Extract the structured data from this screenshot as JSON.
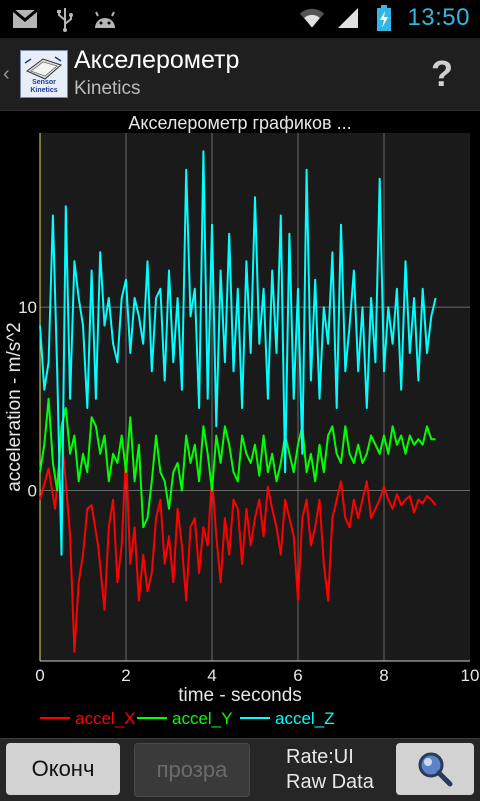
{
  "status_bar": {
    "time": "13:50",
    "left_icons": [
      "gmail-icon",
      "usb-icon",
      "android-icon"
    ],
    "right_icons": [
      "wifi-icon",
      "signal-icon",
      "battery-charging-icon"
    ]
  },
  "action_bar": {
    "title": "Акселерометр",
    "subtitle": "Kinetics",
    "logo_text": "Sensor Kinetics",
    "help_label": "?"
  },
  "chart_data": {
    "type": "line",
    "title": "Акселерометр графиков  ...",
    "xlabel": "time - seconds",
    "ylabel": "acceleration - m/s^2",
    "xlim": [
      0,
      10
    ],
    "ylim": [
      -9.3,
      19.5
    ],
    "x_ticks": [
      "0",
      "2",
      "4",
      "6",
      "8",
      "10"
    ],
    "y_ticks": [
      "0",
      "10"
    ],
    "grid": true,
    "legend_position": "bottom",
    "series": [
      {
        "name": "accel_X",
        "color": "#ff0000",
        "x": [
          0,
          0.2,
          0.35,
          0.5,
          0.6,
          0.7,
          0.8,
          0.9,
          1.0,
          1.1,
          1.2,
          1.35,
          1.5,
          1.6,
          1.7,
          1.8,
          1.9,
          2.0,
          2.1,
          2.2,
          2.3,
          2.4,
          2.5,
          2.6,
          2.7,
          2.8,
          2.9,
          3.0,
          3.1,
          3.2,
          3.3,
          3.4,
          3.5,
          3.6,
          3.7,
          3.8,
          3.9,
          4.0,
          4.1,
          4.2,
          4.3,
          4.4,
          4.5,
          4.6,
          4.7,
          4.8,
          4.9,
          5.0,
          5.1,
          5.2,
          5.3,
          5.4,
          5.5,
          5.6,
          5.7,
          5.8,
          5.9,
          6.0,
          6.1,
          6.2,
          6.3,
          6.4,
          6.5,
          6.6,
          6.7,
          6.8,
          6.9,
          7.0,
          7.1,
          7.2,
          7.3,
          7.4,
          7.5,
          7.6,
          7.7,
          7.8,
          7.9,
          8.0,
          8.1,
          8.2,
          8.3,
          8.4,
          8.5,
          8.6,
          8.7,
          8.8,
          8.9,
          9.0,
          9.1,
          9.2
        ],
        "values": [
          -0.5,
          1.2,
          -1.0,
          3.0,
          0.5,
          -2.5,
          -8.8,
          -5.0,
          -3.5,
          -1.0,
          -0.8,
          -3.0,
          -6.5,
          -2.0,
          -0.5,
          -5.0,
          -3.0,
          2.0,
          -4.0,
          -2.0,
          -6.0,
          -3.5,
          -5.5,
          -4.5,
          -1.5,
          -0.5,
          -4.0,
          -2.5,
          -5.0,
          -1.0,
          -3.0,
          -6.0,
          -2.0,
          -1.5,
          -4.5,
          -2.0,
          -3.0,
          0.8,
          -2.5,
          -5.0,
          -1.5,
          -3.5,
          -0.5,
          -1.0,
          -4.0,
          -1.0,
          -3.0,
          -1.5,
          -0.5,
          -2.5,
          0.2,
          -1.0,
          -2.0,
          -3.5,
          -0.5,
          -1.5,
          -2.5,
          -6.0,
          -1.5,
          -0.5,
          -3.0,
          -2.0,
          -0.5,
          -4.0,
          -6.0,
          -1.5,
          -0.5,
          0.5,
          -1.5,
          -2.0,
          -0.5,
          -1.5,
          -0.5,
          0.5,
          -1.5,
          -1.0,
          -0.5,
          0.2,
          -0.5,
          -1.0,
          -0.2,
          -0.8,
          -0.5,
          -0.3,
          -1.2,
          -0.5,
          -0.7,
          -0.3,
          -0.5,
          -0.8
        ]
      },
      {
        "name": "accel_Y",
        "color": "#00ff00",
        "x": [
          0,
          0.1,
          0.2,
          0.3,
          0.4,
          0.5,
          0.6,
          0.7,
          0.8,
          0.9,
          1.0,
          1.1,
          1.2,
          1.3,
          1.4,
          1.5,
          1.6,
          1.7,
          1.8,
          1.9,
          2.0,
          2.1,
          2.2,
          2.3,
          2.4,
          2.5,
          2.6,
          2.7,
          2.8,
          2.9,
          3.0,
          3.1,
          3.2,
          3.3,
          3.4,
          3.5,
          3.6,
          3.7,
          3.8,
          3.9,
          4.0,
          4.1,
          4.2,
          4.3,
          4.4,
          4.5,
          4.6,
          4.7,
          4.8,
          4.9,
          5.0,
          5.1,
          5.2,
          5.3,
          5.4,
          5.5,
          5.6,
          5.7,
          5.8,
          5.9,
          6.0,
          6.1,
          6.2,
          6.3,
          6.4,
          6.5,
          6.6,
          6.7,
          6.8,
          6.9,
          7.0,
          7.1,
          7.2,
          7.3,
          7.4,
          7.5,
          7.6,
          7.7,
          7.8,
          7.9,
          8.0,
          8.1,
          8.2,
          8.3,
          8.4,
          8.5,
          8.6,
          8.7,
          8.8,
          8.9,
          9.0,
          9.1,
          9.2
        ],
        "values": [
          1.0,
          2.5,
          5.0,
          1.5,
          0.0,
          3.5,
          4.5,
          2.0,
          3.0,
          0.5,
          2.0,
          1.0,
          4.0,
          3.5,
          2.0,
          3.0,
          0.5,
          2.0,
          1.5,
          3.0,
          1.0,
          4.0,
          0.5,
          2.5,
          -2.0,
          -1.5,
          0.5,
          3.0,
          1.0,
          0.5,
          -1.0,
          1.0,
          1.5,
          0.0,
          3.0,
          1.5,
          2.5,
          0.5,
          3.5,
          2.0,
          0.0,
          3.0,
          1.5,
          3.5,
          2.5,
          1.0,
          0.5,
          3.0,
          2.0,
          1.5,
          2.5,
          0.8,
          3.0,
          1.0,
          2.0,
          0.5,
          1.5,
          3.0,
          2.0,
          1.0,
          2.5,
          3.5,
          1.0,
          2.0,
          0.5,
          2.5,
          1.0,
          3.0,
          3.5,
          2.0,
          1.5,
          3.5,
          2.0,
          1.5,
          2.5,
          1.5,
          2.0,
          3.0,
          2.5,
          2.0,
          3.0,
          2.0,
          3.5,
          2.5,
          3.0,
          2.0,
          3.0,
          2.5,
          2.8,
          2.5,
          3.5,
          2.8,
          2.8
        ]
      },
      {
        "name": "accel_Z",
        "color": "#00ffff",
        "x": [
          0,
          0.1,
          0.2,
          0.3,
          0.4,
          0.5,
          0.6,
          0.7,
          0.8,
          0.9,
          1.0,
          1.1,
          1.2,
          1.3,
          1.4,
          1.5,
          1.6,
          1.7,
          1.8,
          1.9,
          2.0,
          2.1,
          2.2,
          2.3,
          2.4,
          2.5,
          2.6,
          2.7,
          2.8,
          2.9,
          3.0,
          3.1,
          3.2,
          3.3,
          3.4,
          3.5,
          3.6,
          3.7,
          3.8,
          3.9,
          4.0,
          4.1,
          4.2,
          4.3,
          4.4,
          4.5,
          4.6,
          4.7,
          4.8,
          4.9,
          5.0,
          5.1,
          5.2,
          5.3,
          5.4,
          5.5,
          5.6,
          5.7,
          5.8,
          5.9,
          6.0,
          6.1,
          6.2,
          6.3,
          6.4,
          6.5,
          6.6,
          6.7,
          6.8,
          6.9,
          7.0,
          7.1,
          7.2,
          7.3,
          7.4,
          7.5,
          7.6,
          7.7,
          7.8,
          7.9,
          8.0,
          8.1,
          8.2,
          8.3,
          8.4,
          8.5,
          8.6,
          8.7,
          8.8,
          8.9,
          9.0,
          9.1,
          9.2
        ],
        "values": [
          9.0,
          5.5,
          7.0,
          15.0,
          6.5,
          -3.5,
          15.5,
          5.0,
          12.5,
          10.5,
          9.0,
          4.5,
          12.0,
          5.0,
          13.0,
          9.0,
          10.5,
          8.0,
          7.0,
          10.5,
          11.5,
          7.5,
          10.5,
          9.5,
          8.0,
          12.5,
          6.5,
          10.5,
          11.0,
          6.0,
          12.0,
          7.0,
          10.5,
          5.5,
          17.5,
          9.5,
          11.0,
          4.5,
          18.5,
          5.0,
          14.5,
          3.5,
          12.0,
          7.0,
          14.0,
          6.5,
          11.0,
          4.5,
          12.5,
          7.5,
          16.0,
          8.0,
          11.0,
          5.0,
          12.0,
          7.5,
          15.0,
          1.0,
          14.0,
          5.0,
          11.0,
          2.0,
          17.5,
          6.0,
          11.5,
          5.0,
          10.0,
          8.0,
          13.0,
          4.5,
          14.5,
          6.5,
          9.0,
          12.0,
          6.5,
          10.0,
          4.5,
          10.5,
          7.0,
          17.0,
          6.5,
          10.0,
          8.0,
          11.0,
          5.5,
          12.5,
          7.5,
          10.5,
          6.0,
          11.0,
          7.5,
          9.5,
          10.5
        ]
      }
    ]
  },
  "bottom_bar": {
    "stop_label": "Оконч",
    "transparency_label": "прозра",
    "rate_line1": "Rate:UI",
    "rate_line2": "Raw Data"
  }
}
